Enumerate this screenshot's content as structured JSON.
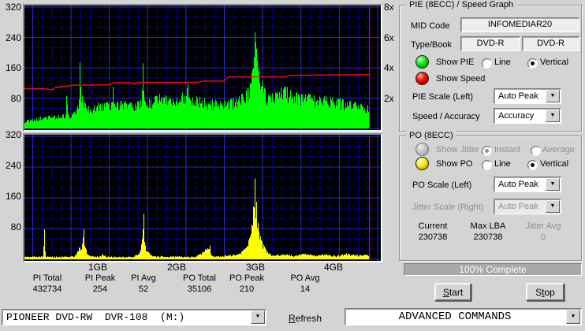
{
  "colors": {
    "dialog_bg": "#d4d4d4",
    "plot_bg": "#000000",
    "grid_minor": "#000092",
    "grid_major": "#2929d6",
    "pie": "#00ff00",
    "po": "#ffff00",
    "speed": "#dd1111",
    "cursor": "#ff0000",
    "progress_fill": "#a8a8a8"
  },
  "chart_data": {
    "type": "area-bars+line",
    "x_axis": {
      "unit": "GB",
      "ticks": [
        1,
        2,
        3,
        4
      ],
      "tick_labels": [
        "1GB",
        "2GB",
        "3GB",
        "4GB"
      ],
      "range": [
        0,
        4.55
      ],
      "data_end_gb": 4.45
    },
    "left_axis": {
      "label": "errors",
      "range": [
        0,
        320
      ],
      "ticks": [
        320,
        240,
        160,
        80
      ]
    },
    "right_axis": {
      "label": "speed",
      "range": [
        0,
        8
      ],
      "ticks": [
        8,
        6,
        4,
        2
      ],
      "tick_labels": [
        "8x",
        "6x",
        "4x",
        "2x"
      ]
    },
    "cursor_gb": 4.45,
    "top_graph": {
      "series": [
        {
          "name": "PIE errors",
          "type": "vertical-bars",
          "color": "#00ff00",
          "points": [
            [
              0,
              16
            ],
            [
              0.05,
              20
            ],
            [
              0.15,
              24
            ],
            [
              0.25,
              30
            ],
            [
              0.35,
              32
            ],
            [
              0.45,
              34
            ],
            [
              0.55,
              36
            ],
            [
              0.585,
              36
            ],
            [
              0.6,
              86
            ],
            [
              0.615,
              36
            ],
            [
              0.7,
              44
            ],
            [
              0.74,
              60
            ],
            [
              0.765,
              100
            ],
            [
              0.77,
              175
            ],
            [
              0.78,
              110
            ],
            [
              0.8,
              85
            ],
            [
              0.83,
              70
            ],
            [
              0.88,
              60
            ],
            [
              0.95,
              62
            ],
            [
              1.0,
              68
            ],
            [
              1.05,
              66
            ],
            [
              1.1,
              70
            ],
            [
              1.17,
              68
            ],
            [
              1.185,
              110
            ],
            [
              1.2,
              68
            ],
            [
              1.28,
              72
            ],
            [
              1.35,
              74
            ],
            [
              1.42,
              70
            ],
            [
              1.5,
              72
            ],
            [
              1.555,
              74
            ],
            [
              1.57,
              172
            ],
            [
              1.585,
              74
            ],
            [
              1.65,
              78
            ],
            [
              1.72,
              85
            ],
            [
              1.78,
              92
            ],
            [
              1.85,
              88
            ],
            [
              1.92,
              80
            ],
            [
              2.0,
              82
            ],
            [
              2.07,
              95
            ],
            [
              2.1,
              85
            ],
            [
              2.14,
              118
            ],
            [
              2.16,
              82
            ],
            [
              2.25,
              85
            ],
            [
              2.35,
              80
            ],
            [
              2.45,
              76
            ],
            [
              2.55,
              72
            ],
            [
              2.65,
              74
            ],
            [
              2.75,
              80
            ],
            [
              2.82,
              90
            ],
            [
              2.88,
              100
            ],
            [
              2.93,
              120
            ],
            [
              2.97,
              160
            ],
            [
              2.995,
              254
            ],
            [
              3.01,
              210
            ],
            [
              3.04,
              160
            ],
            [
              3.08,
              125
            ],
            [
              3.12,
              105
            ],
            [
              3.18,
              92
            ],
            [
              3.25,
              95
            ],
            [
              3.32,
              108
            ],
            [
              3.38,
              112
            ],
            [
              3.45,
              102
            ],
            [
              3.52,
              95
            ],
            [
              3.6,
              90
            ],
            [
              3.68,
              93
            ],
            [
              3.75,
              88
            ],
            [
              3.82,
              84
            ],
            [
              3.9,
              86
            ],
            [
              3.98,
              82
            ],
            [
              4.05,
              80
            ],
            [
              4.12,
              76
            ],
            [
              4.2,
              72
            ],
            [
              4.28,
              68
            ],
            [
              4.35,
              64
            ],
            [
              4.45,
              58
            ]
          ]
        },
        {
          "name": "Speed",
          "type": "line",
          "color": "#dd1111",
          "axis": "right",
          "points": [
            [
              0,
              2.62
            ],
            [
              0.3,
              2.62
            ],
            [
              0.42,
              2.55
            ],
            [
              0.46,
              2.7
            ],
            [
              0.7,
              2.85
            ],
            [
              1.15,
              2.88
            ],
            [
              1.2,
              3.02
            ],
            [
              1.44,
              3.02
            ],
            [
              1.46,
              2.9
            ],
            [
              1.49,
              3.04
            ],
            [
              2.28,
              3.04
            ],
            [
              2.33,
              3.12
            ],
            [
              2.6,
              3.12
            ],
            [
              2.66,
              3.4
            ],
            [
              3.38,
              3.4
            ],
            [
              3.44,
              3.5
            ],
            [
              4.45,
              3.55
            ]
          ]
        }
      ]
    },
    "bottom_graph": {
      "series": [
        {
          "name": "PO errors",
          "type": "vertical-bars",
          "color": "#ffff00",
          "points": [
            [
              0,
              5
            ],
            [
              0.2,
              6
            ],
            [
              0.3,
              6
            ],
            [
              0.315,
              78
            ],
            [
              0.33,
              6
            ],
            [
              0.5,
              5
            ],
            [
              0.7,
              7
            ],
            [
              0.76,
              30
            ],
            [
              0.8,
              40
            ],
            [
              0.815,
              78
            ],
            [
              0.83,
              35
            ],
            [
              0.87,
              12
            ],
            [
              0.95,
              6
            ],
            [
              1.04,
              7
            ],
            [
              1.05,
              14
            ],
            [
              1.1,
              6
            ],
            [
              1.3,
              5
            ],
            [
              1.45,
              6
            ],
            [
              1.52,
              14
            ],
            [
              1.55,
              40
            ],
            [
              1.565,
              60
            ],
            [
              1.575,
              118
            ],
            [
              1.59,
              45
            ],
            [
              1.62,
              20
            ],
            [
              1.7,
              8
            ],
            [
              1.85,
              6
            ],
            [
              2.0,
              7
            ],
            [
              2.1,
              6
            ],
            [
              2.25,
              6
            ],
            [
              2.42,
              36
            ],
            [
              2.44,
              8
            ],
            [
              2.55,
              7
            ],
            [
              2.65,
              10
            ],
            [
              2.75,
              12
            ],
            [
              2.82,
              18
            ],
            [
              2.88,
              30
            ],
            [
              2.92,
              55
            ],
            [
              2.95,
              90
            ],
            [
              2.97,
              130
            ],
            [
              2.99,
              210
            ],
            [
              3.01,
              150
            ],
            [
              3.03,
              95
            ],
            [
              3.06,
              60
            ],
            [
              3.1,
              38
            ],
            [
              3.15,
              20
            ],
            [
              3.22,
              10
            ],
            [
              3.35,
              12
            ],
            [
              3.5,
              8
            ],
            [
              3.62,
              14
            ],
            [
              3.75,
              9
            ],
            [
              3.9,
              12
            ],
            [
              4.05,
              8
            ],
            [
              4.18,
              14
            ],
            [
              4.3,
              10
            ],
            [
              4.4,
              12
            ],
            [
              4.45,
              8
            ]
          ]
        }
      ]
    }
  },
  "pie_panel": {
    "title": "PIE (8ECC) / Speed Graph",
    "mid_code_label": "MID Code",
    "mid_code_value": "INFOMEDIAR20",
    "type_book_label": "Type/Book",
    "type_value": "DVD-R",
    "book_value": "DVD-R",
    "show_pie_label": "Show PIE",
    "show_speed_label": "Show Speed",
    "line_label": "Line",
    "vertical_label": "Vertical",
    "pie_scale_label": "PIE Scale (Left)",
    "pie_scale_value": "Auto Peak",
    "speed_accuracy_label": "Speed / Accuracy",
    "speed_accuracy_value": "Accuracy"
  },
  "po_panel": {
    "title": "PO (8ECC)",
    "show_jitter_label": "Show Jitter",
    "instant_label": "Instant",
    "average_label": "Average",
    "show_po_label": "Show PO",
    "line_label": "Line",
    "vertical_label": "Vertical",
    "po_scale_label": "PO Scale (Left)",
    "po_scale_value": "Auto Peak",
    "jitter_scale_label": "Jitter Scale (Right)",
    "jitter_scale_value": "Auto Peak",
    "current_label": "Current",
    "current_value": "230738",
    "max_lba_label": "Max LBA",
    "max_lba_value": "230738",
    "jitter_avg_label": "Jitter Avg",
    "jitter_avg_value": "0"
  },
  "progress": {
    "label": "100% Complete"
  },
  "buttons": {
    "start": {
      "label": "Start",
      "accel": "S"
    },
    "stop": {
      "label": "Stop",
      "accel": "t"
    }
  },
  "stats": {
    "items": [
      {
        "label": "PI Total",
        "value": "432734"
      },
      {
        "label": "PI Peak",
        "value": "254"
      },
      {
        "label": "PI Avg",
        "value": "52"
      },
      {
        "label": "PO Total",
        "value": "35106"
      },
      {
        "label": "PO Peak",
        "value": "210"
      },
      {
        "label": "PO Avg",
        "value": "14"
      }
    ]
  },
  "bottom_bar": {
    "drive_value": "PIONEER DVD-RW  DVR-108  (M:)",
    "refresh": {
      "label": "Refresh",
      "accel": "R"
    },
    "command_value": "ADVANCED COMMANDS"
  }
}
